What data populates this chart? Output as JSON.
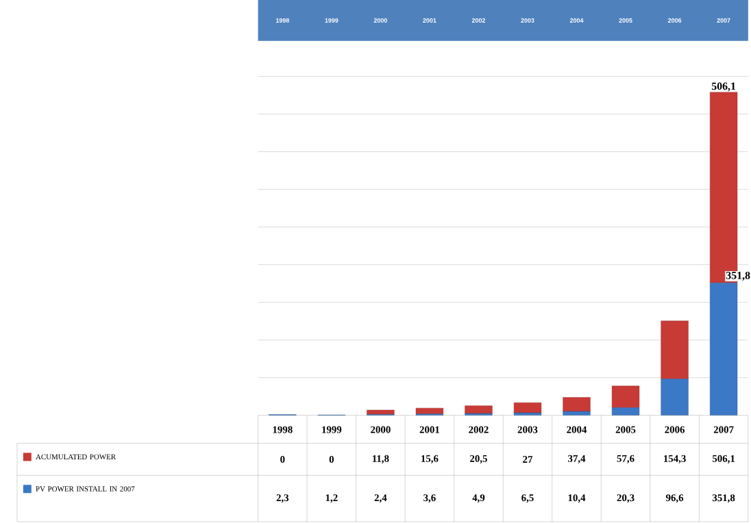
{
  "chart_data": {
    "type": "bar",
    "stacked": true,
    "categories": [
      "1998",
      "1999",
      "2000",
      "2001",
      "2002",
      "2003",
      "2004",
      "2005",
      "2006",
      "2007"
    ],
    "series": [
      {
        "name": "PV POWER INSTALL IN 2007",
        "color": "#3b78c6",
        "values": [
          2.3,
          1.2,
          2.4,
          3.6,
          4.9,
          6.5,
          10.4,
          20.3,
          96.6,
          351.8
        ],
        "value_labels": [
          "2,3",
          "1,2",
          "2,4",
          "3,6",
          "4,9",
          "6,5",
          "10,4",
          "20,3",
          "96,6",
          "351,8"
        ]
      },
      {
        "name": "ACUMULATED POWER",
        "color": "#c83a36",
        "values": [
          0,
          0,
          11.8,
          15.6,
          20.5,
          27,
          37.4,
          57.6,
          154.3,
          506.1
        ],
        "value_labels": [
          "0",
          "0",
          "11,8",
          "15,6",
          "20,5",
          "27",
          "37,4",
          "57,6",
          "154,3",
          "506,1"
        ]
      }
    ],
    "ylim": [
      0,
      900
    ],
    "yticks": [
      {
        "value": 100,
        "label": null
      },
      {
        "value": 200,
        "label": null
      },
      {
        "value": 300,
        "label": null
      },
      {
        "value": 400,
        "label": null
      },
      {
        "value": 500,
        "label": null
      },
      {
        "value": 600,
        "label": null
      },
      {
        "value": 700,
        "label": null
      },
      {
        "value": 800,
        "label": null
      },
      {
        "value": 900,
        "label": null
      }
    ],
    "grid": "y",
    "legend": "bottom left",
    "tick_labels": "x",
    "annotations": [
      "506,1",
      "351,8"
    ]
  }
}
